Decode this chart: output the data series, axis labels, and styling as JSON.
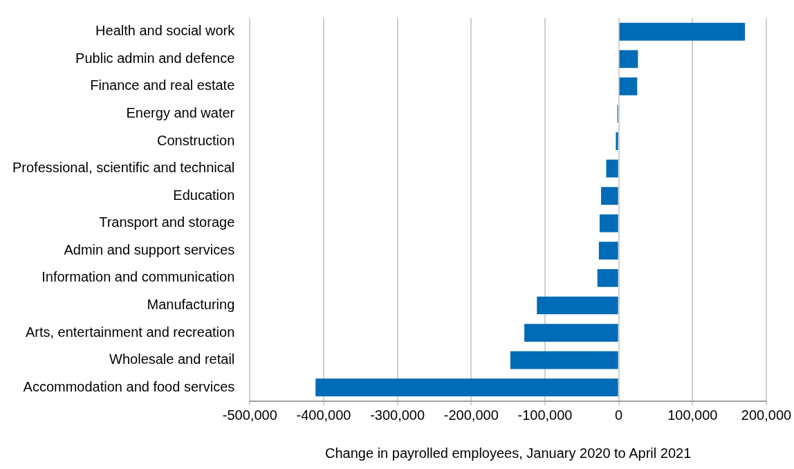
{
  "chart_data": {
    "type": "bar",
    "orientation": "horizontal",
    "xlabel": "Change in payrolled employees, January 2020 to April 2021",
    "categories": [
      "Health and social work",
      "Public admin and defence",
      "Finance and real estate",
      "Energy and water",
      "Construction",
      "Professional, scientific and technical",
      "Education",
      "Transport and storage",
      "Admin and support services",
      "Information and communication",
      "Manufacturing",
      "Arts, entertainment and recreation",
      "Wholesale and retail",
      "Accommodation and food services"
    ],
    "values": [
      171000,
      26000,
      25000,
      -2000,
      -4000,
      -17000,
      -24000,
      -26000,
      -27000,
      -29000,
      -111000,
      -128000,
      -147000,
      -411000
    ],
    "color": "#006bb6",
    "xlim": [
      -500000,
      200000
    ],
    "xticks": [
      {
        "value": -500000,
        "label": "-500,000"
      },
      {
        "value": -400000,
        "label": "-400,000"
      },
      {
        "value": -300000,
        "label": "-300,000"
      },
      {
        "value": -200000,
        "label": "-200,000"
      },
      {
        "value": -100000,
        "label": "-100,000"
      },
      0,
      {
        "value": 100000,
        "label": "100,000"
      },
      {
        "value": 200000,
        "label": "200,000"
      }
    ],
    "grid": "x",
    "legend": false
  }
}
